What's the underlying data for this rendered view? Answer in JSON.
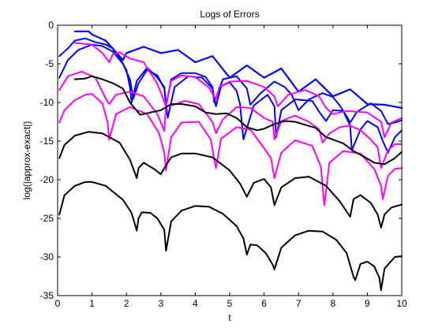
{
  "chart_data": {
    "type": "line",
    "title": "Logs of Errors",
    "xlabel": "t",
    "ylabel": "log(|approx-exact|)",
    "xlim": [
      0,
      10
    ],
    "ylim": [
      -35,
      0
    ],
    "xticks": [
      "0",
      "1",
      "2",
      "3",
      "4",
      "5",
      "6",
      "7",
      "8",
      "9",
      "10"
    ],
    "yticks": [
      "0",
      "-5",
      "-10",
      "-15",
      "-20",
      "-25",
      "-30",
      "-35"
    ],
    "grid": false,
    "legend": "none",
    "colors": {
      "blue": "#0000ff",
      "magenta": "#ff00ff",
      "black": "#000000"
    },
    "series": [
      {
        "color": "blue",
        "width": 2.2,
        "x": [
          0.5,
          0.9,
          1.0,
          1.4,
          1.9,
          2.0,
          2.5,
          3.0,
          3.5,
          4.0,
          4.5,
          5.0,
          5.5,
          6.0,
          6.5,
          7.0,
          7.5,
          8.0,
          8.5,
          9.0,
          9.5,
          10.0
        ],
        "y": [
          -0.8,
          -0.8,
          -1.2,
          -2.0,
          -4.5,
          -3.6,
          -2.8,
          -3.6,
          -3.2,
          -4.8,
          -4.0,
          -6.8,
          -5.2,
          -6.8,
          -5.6,
          -8.6,
          -7.0,
          -9.2,
          -8.3,
          -10.2,
          -10.3,
          -10.7
        ]
      },
      {
        "color": "blue",
        "width": 2.0,
        "x": [
          0.05,
          0.3,
          0.5,
          0.8,
          1.1,
          1.4,
          1.6,
          1.8,
          2.0,
          2.1,
          2.15,
          2.3,
          2.6,
          2.9,
          3.1,
          3.15,
          3.3,
          3.6,
          4.0,
          4.3,
          4.5,
          4.55,
          4.8,
          5.2,
          5.5,
          5.6,
          5.9,
          6.3,
          6.6,
          6.8,
          7.0,
          7.3,
          7.7,
          8.0,
          8.2,
          8.4,
          8.5,
          8.7,
          9.1,
          9.4,
          9.6,
          9.8,
          10.0
        ],
        "y": [
          -4.0,
          -3.0,
          -2.0,
          -1.7,
          -2.2,
          -2.5,
          -3.0,
          -4.2,
          -5.8,
          -8.0,
          -10.0,
          -7.2,
          -5.5,
          -6.8,
          -8.0,
          -10.5,
          -7.0,
          -6.2,
          -6.2,
          -6.7,
          -8.0,
          -10.0,
          -7.0,
          -6.6,
          -8.2,
          -10.3,
          -8.8,
          -7.3,
          -8.0,
          -9.0,
          -11.0,
          -9.6,
          -8.8,
          -9.3,
          -10.4,
          -11.8,
          -12.6,
          -11.2,
          -10.1,
          -11.1,
          -12.8,
          -12.6,
          -12.3
        ]
      },
      {
        "color": "blue",
        "width": 2.0,
        "x": [
          0.05,
          0.3,
          0.6,
          1.0,
          1.3,
          1.6,
          1.9,
          2.1,
          2.2,
          2.35,
          2.6,
          2.9,
          3.1,
          3.2,
          3.4,
          3.8,
          4.2,
          4.5,
          4.6,
          4.75,
          5.0,
          5.2,
          5.3,
          5.4,
          5.7,
          6.1,
          6.3,
          6.35,
          6.5,
          6.9,
          7.4,
          7.6,
          7.8,
          8.0,
          8.3,
          8.5,
          8.55,
          8.8,
          9.0,
          9.3,
          9.45,
          9.6,
          9.8,
          10.0
        ],
        "y": [
          -6.8,
          -4.5,
          -3.2,
          -2.5,
          -2.7,
          -3.4,
          -5.0,
          -7.0,
          -9.5,
          -7.5,
          -5.8,
          -6.5,
          -8.2,
          -12.0,
          -8.0,
          -6.6,
          -6.8,
          -8.2,
          -10.5,
          -7.9,
          -7.4,
          -8.5,
          -10.2,
          -14.8,
          -10.4,
          -9.0,
          -10.5,
          -14.5,
          -11.0,
          -9.6,
          -9.8,
          -11.2,
          -12.4,
          -11.0,
          -11.1,
          -13.0,
          -16.2,
          -13.5,
          -12.4,
          -13.2,
          -15.0,
          -16.5,
          -14.5,
          -13.6
        ]
      },
      {
        "color": "magenta",
        "width": 2.0,
        "x": [
          0.5,
          1.0,
          1.3,
          1.5,
          1.6,
          1.8,
          2.1,
          2.5,
          2.9,
          3.0,
          3.15,
          3.3,
          3.6,
          4.0,
          4.4,
          4.6,
          4.7,
          5.0,
          5.5,
          6.0,
          6.3,
          6.4,
          6.7,
          7.2,
          7.6,
          7.8,
          8.0,
          8.4,
          9.0,
          9.4,
          9.5,
          9.7,
          10.0
        ],
        "y": [
          -2.3,
          -2.5,
          -3.6,
          -4.8,
          -3.8,
          -3.5,
          -4.3,
          -4.8,
          -7.6,
          -8.7,
          -10.5,
          -7.2,
          -6.5,
          -6.7,
          -8.1,
          -9.6,
          -8.0,
          -7.3,
          -7.2,
          -8.0,
          -9.2,
          -10.5,
          -9.0,
          -8.4,
          -9.2,
          -10.7,
          -11.5,
          -11.1,
          -11.3,
          -12.5,
          -14.5,
          -12.6,
          -12.0
        ]
      },
      {
        "color": "magenta",
        "width": 2.0,
        "x": [
          0.05,
          0.3,
          0.7,
          1.1,
          1.4,
          1.5,
          1.7,
          2.1,
          2.5,
          2.9,
          3.1,
          3.15,
          3.3,
          3.7,
          4.1,
          4.5,
          4.6,
          4.8,
          5.2,
          5.6,
          6.0,
          6.25,
          6.3,
          6.5,
          6.9,
          7.3,
          7.6,
          7.7,
          7.9,
          8.2,
          8.5,
          8.8,
          9.1,
          9.3,
          9.4,
          9.6,
          9.8,
          10.0
        ],
        "y": [
          -8.4,
          -6.6,
          -6.0,
          -6.8,
          -9.5,
          -10.2,
          -9.0,
          -8.6,
          -9.2,
          -11.5,
          -13.7,
          -10.5,
          -10.4,
          -9.8,
          -10.2,
          -12.5,
          -14.0,
          -12.2,
          -10.6,
          -10.7,
          -12.0,
          -12.5,
          -14.8,
          -12.4,
          -11.7,
          -12.5,
          -13.5,
          -15.2,
          -14.0,
          -13.2,
          -13.0,
          -13.6,
          -14.8,
          -15.8,
          -18.5,
          -16.2,
          -15.4,
          -15.4
        ]
      },
      {
        "color": "magenta",
        "width": 2.0,
        "x": [
          0.05,
          0.2,
          0.5,
          0.8,
          1.0,
          1.3,
          1.45,
          1.5,
          1.7,
          2.1,
          2.6,
          2.95,
          3.1,
          3.15,
          3.3,
          3.6,
          4.1,
          4.45,
          4.6,
          4.75,
          5.2,
          5.6,
          5.95,
          6.2,
          6.3,
          6.5,
          6.9,
          7.4,
          7.65,
          7.75,
          7.9,
          8.3,
          8.8,
          9.2,
          9.4,
          9.45,
          9.6,
          9.8,
          10.0
        ],
        "y": [
          -12.6,
          -11.0,
          -9.7,
          -9.0,
          -8.9,
          -10.1,
          -12.5,
          -14.8,
          -11.5,
          -10.6,
          -11.5,
          -14.0,
          -16.5,
          -18.8,
          -14.5,
          -12.6,
          -12.5,
          -14.8,
          -18.5,
          -14.7,
          -13.2,
          -13.5,
          -15.6,
          -17.2,
          -19.8,
          -16.5,
          -14.9,
          -15.6,
          -18.3,
          -23.3,
          -17.8,
          -16.3,
          -16.6,
          -18.6,
          -20.8,
          -22.5,
          -19.5,
          -18.6,
          -18.5
        ]
      },
      {
        "color": "black",
        "width": 2.0,
        "x": [
          0.5,
          0.8,
          1.0,
          1.3,
          1.6,
          1.9,
          2.1,
          2.4,
          2.7,
          3.0,
          3.3,
          3.6,
          4.0,
          4.3,
          4.6,
          4.9,
          5.2,
          5.5,
          5.8,
          6.0,
          6.3,
          6.6,
          6.9,
          7.2,
          7.5,
          7.8,
          8.0,
          8.3,
          8.6,
          8.9,
          9.2,
          9.5,
          9.8,
          10.0
        ],
        "y": [
          -7.0,
          -6.9,
          -6.6,
          -7.0,
          -7.5,
          -8.2,
          -10.0,
          -11.6,
          -11.3,
          -11.0,
          -10.2,
          -10.2,
          -10.5,
          -11.3,
          -11.5,
          -11.4,
          -12.0,
          -13.2,
          -13.6,
          -13.4,
          -12.8,
          -12.4,
          -12.5,
          -12.9,
          -13.3,
          -14.5,
          -14.8,
          -15.3,
          -16.3,
          -17.0,
          -17.8,
          -18.0,
          -17.2,
          -16.4
        ]
      },
      {
        "color": "black",
        "width": 2.0,
        "x": [
          0.05,
          0.2,
          0.5,
          0.9,
          1.3,
          1.8,
          2.1,
          2.3,
          2.35,
          2.5,
          2.8,
          3.0,
          3.1,
          3.3,
          3.6,
          4.0,
          4.5,
          5.0,
          5.3,
          5.5,
          5.7,
          6.0,
          6.2,
          6.3,
          6.5,
          6.9,
          7.3,
          7.8,
          8.2,
          8.5,
          8.6,
          8.8,
          9.1,
          9.3,
          9.4,
          9.5,
          9.7,
          10.0
        ],
        "y": [
          -17.2,
          -15.5,
          -14.3,
          -13.8,
          -14.0,
          -15.2,
          -17.4,
          -19.8,
          -18.5,
          -17.8,
          -18.6,
          -19.3,
          -18.5,
          -17.1,
          -16.6,
          -16.6,
          -17.1,
          -18.8,
          -20.5,
          -22.2,
          -20.4,
          -19.9,
          -21.0,
          -23.3,
          -21.0,
          -19.8,
          -19.6,
          -20.8,
          -22.8,
          -24.8,
          -22.5,
          -22.0,
          -23.0,
          -24.5,
          -26.2,
          -24.5,
          -23.6,
          -23.2
        ]
      },
      {
        "color": "black",
        "width": 2.0,
        "x": [
          0.05,
          0.2,
          0.5,
          0.8,
          1.0,
          1.4,
          1.9,
          2.15,
          2.3,
          2.35,
          2.45,
          2.7,
          2.9,
          3.1,
          3.15,
          3.3,
          3.6,
          4.0,
          4.4,
          4.8,
          5.2,
          5.4,
          5.5,
          5.6,
          5.8,
          6.05,
          6.25,
          6.3,
          6.5,
          6.9,
          7.3,
          7.7,
          8.1,
          8.4,
          8.6,
          8.65,
          8.8,
          9.0,
          9.2,
          9.35,
          9.4,
          9.5,
          9.8,
          10.0
        ],
        "y": [
          -24.5,
          -22.0,
          -20.8,
          -20.3,
          -20.3,
          -20.8,
          -22.6,
          -24.3,
          -26.6,
          -25.0,
          -24.2,
          -24.3,
          -25.0,
          -26.5,
          -29.2,
          -25.4,
          -24.0,
          -23.4,
          -23.5,
          -24.4,
          -26.0,
          -27.6,
          -29.7,
          -28.4,
          -28.5,
          -29.5,
          -31.0,
          -31.6,
          -28.8,
          -27.2,
          -26.6,
          -26.7,
          -27.8,
          -29.5,
          -32.6,
          -33.0,
          -30.9,
          -30.6,
          -31.2,
          -32.7,
          -34.3,
          -31.5,
          -30.0,
          -29.9
        ]
      }
    ]
  }
}
